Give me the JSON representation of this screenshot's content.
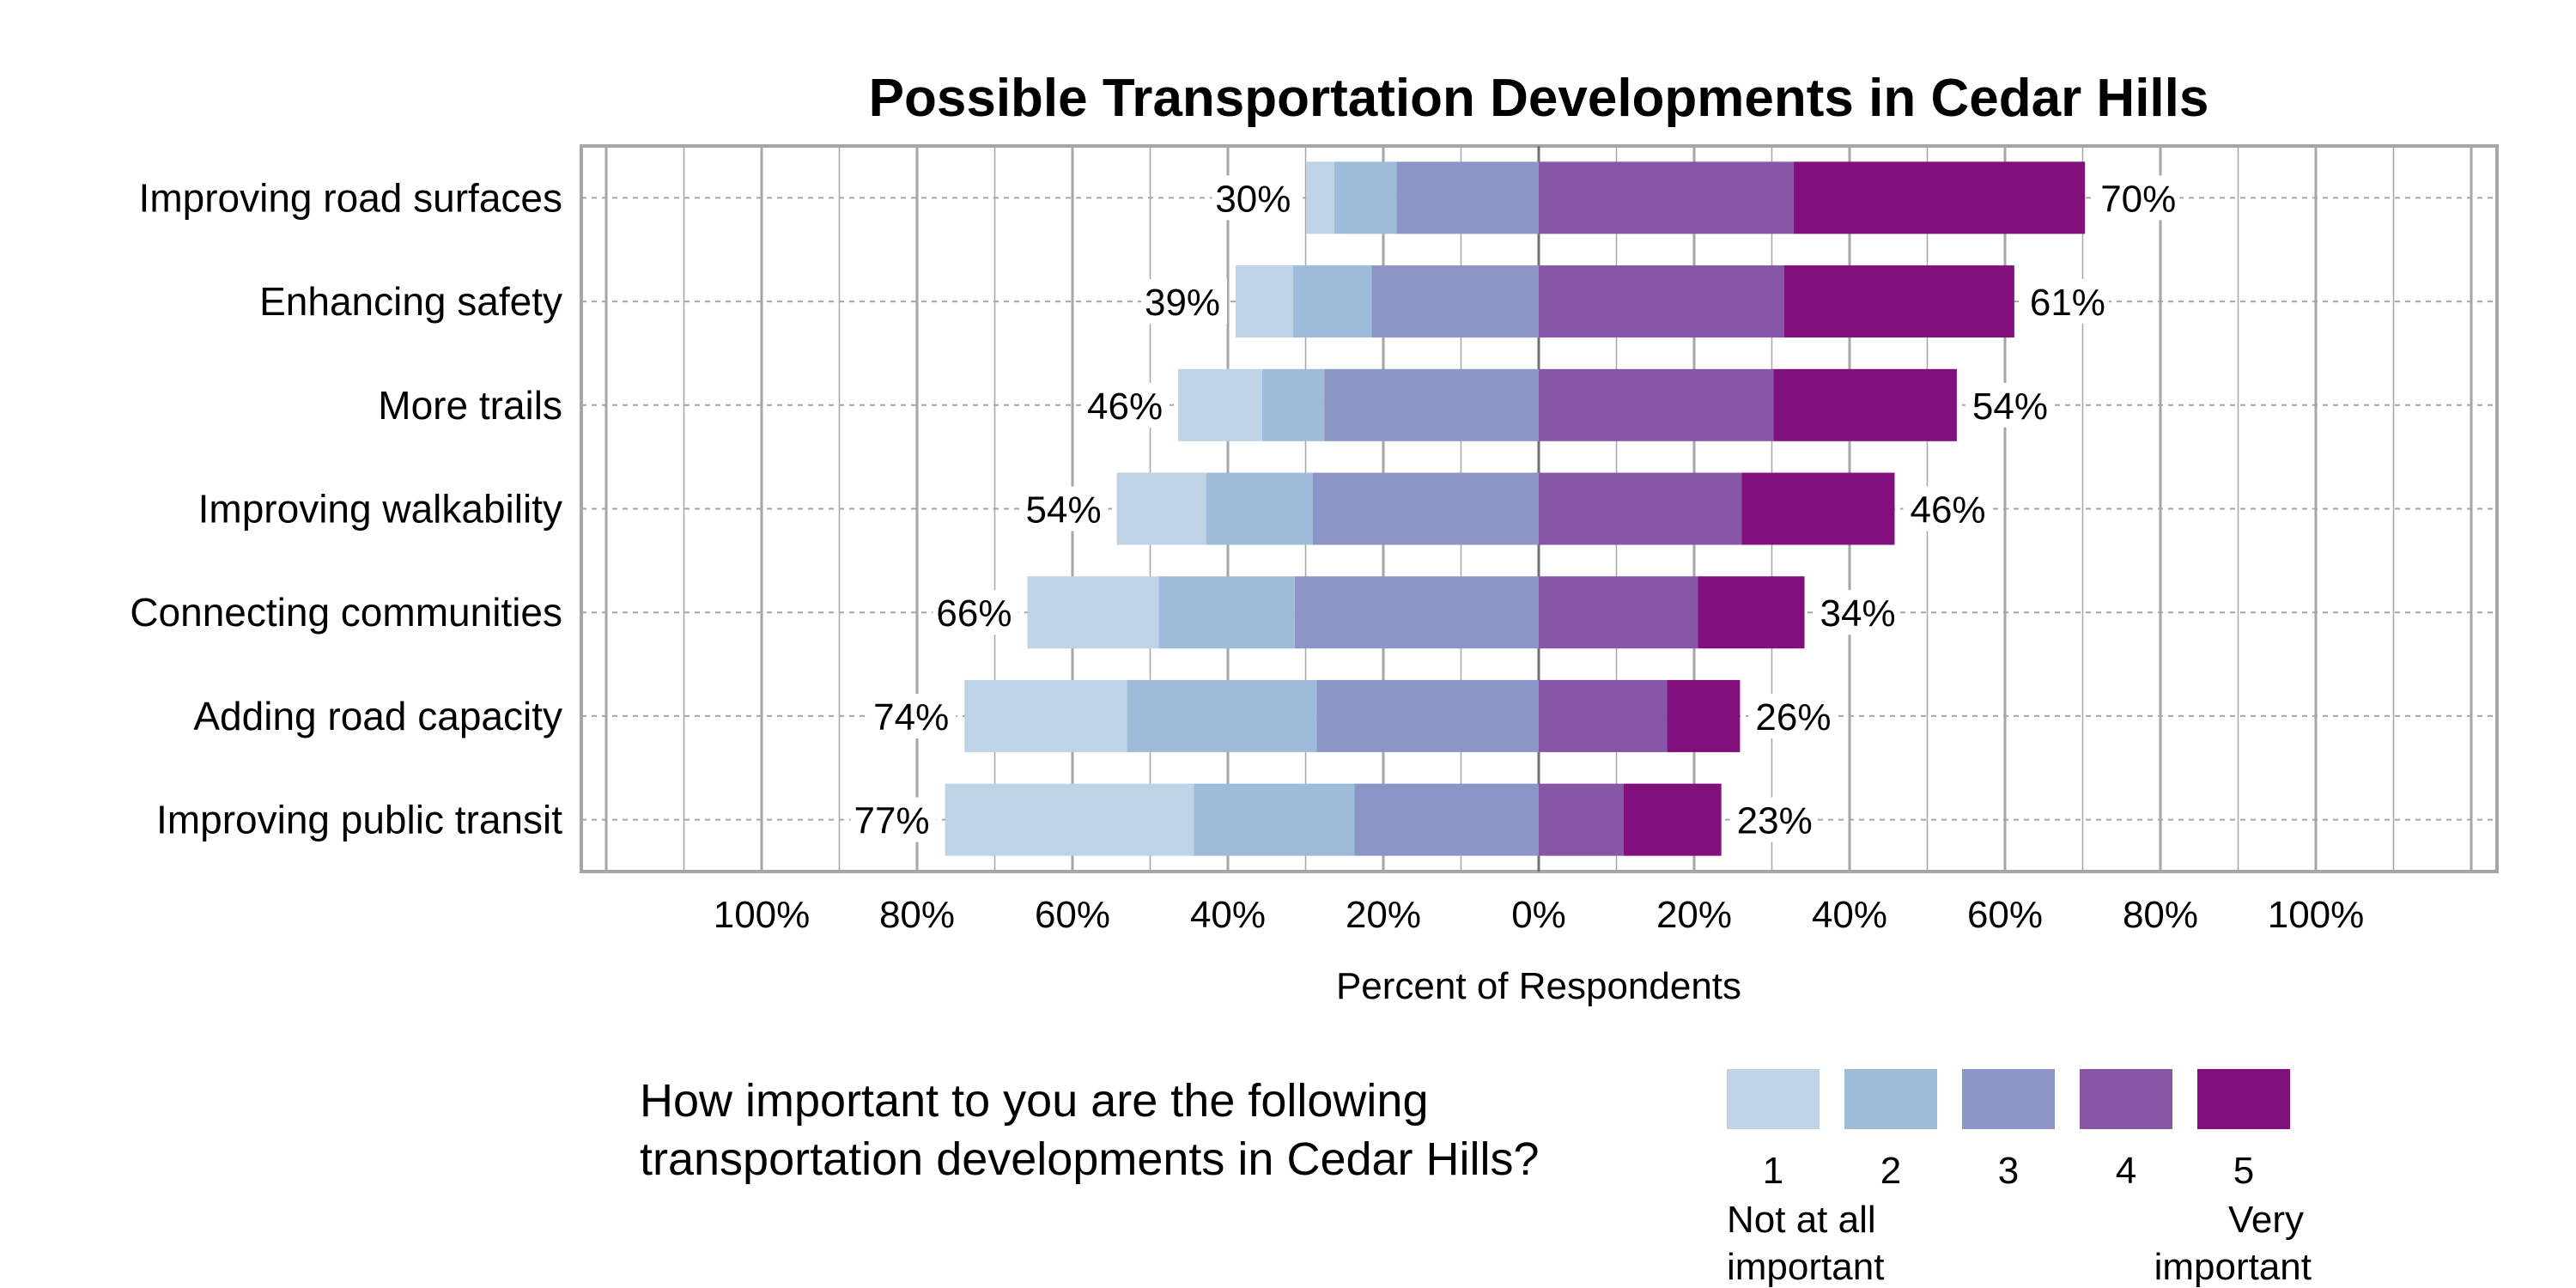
{
  "chart_data": {
    "type": "bar",
    "subtype": "diverging-stacked-horizontal",
    "title": "Possible Transportation Developments in Cedar Hills",
    "xlabel": "Percent of Respondents",
    "ylabel": "",
    "xlim": [
      -100,
      100
    ],
    "x_ticks": [
      "100%",
      "80%",
      "60%",
      "40%",
      "20%",
      "0%",
      "20%",
      "40%",
      "60%",
      "80%",
      "100%"
    ],
    "grid": true,
    "legend_placement": "bottom-right",
    "question": [
      "How important to you are the following",
      "transportation developments in Cedar Hills?"
    ],
    "legend": {
      "labels": [
        "1",
        "2",
        "3",
        "4",
        "5"
      ],
      "low_anchor": [
        "Not at all",
        "important"
      ],
      "high_anchor": [
        "Very",
        "important"
      ]
    },
    "colors": [
      "#bfd3e6",
      "#9ebcda",
      "#8c96c6",
      "#8856a7",
      "#810f7c"
    ],
    "categories": [
      "Improving road surfaces",
      "Enhancing safety",
      "More trails",
      "Improving walkability",
      "Connecting communities",
      "Adding road capacity",
      "Improving public transit"
    ],
    "series": [
      {
        "name": "1",
        "values": [
          3.6,
          7.4,
          10.8,
          11.5,
          16.9,
          20.9,
          32.0
        ]
      },
      {
        "name": "2",
        "values": [
          8.0,
          10.1,
          8.0,
          13.7,
          17.5,
          24.4,
          20.7
        ]
      },
      {
        "name": "3",
        "values": [
          18.3,
          21.5,
          27.6,
          29.1,
          31.4,
          28.6,
          23.7
        ]
      },
      {
        "name": "4",
        "values": [
          32.8,
          31.6,
          30.2,
          26.1,
          20.5,
          16.5,
          10.9
        ]
      },
      {
        "name": "5",
        "values": [
          37.5,
          29.6,
          23.6,
          19.7,
          13.7,
          9.4,
          12.6
        ]
      }
    ],
    "left_labels": [
      "30%",
      "39%",
      "46%",
      "54%",
      "66%",
      "74%",
      "77%"
    ],
    "right_labels": [
      "70%",
      "61%",
      "54%",
      "46%",
      "34%",
      "26%",
      "23%"
    ]
  }
}
